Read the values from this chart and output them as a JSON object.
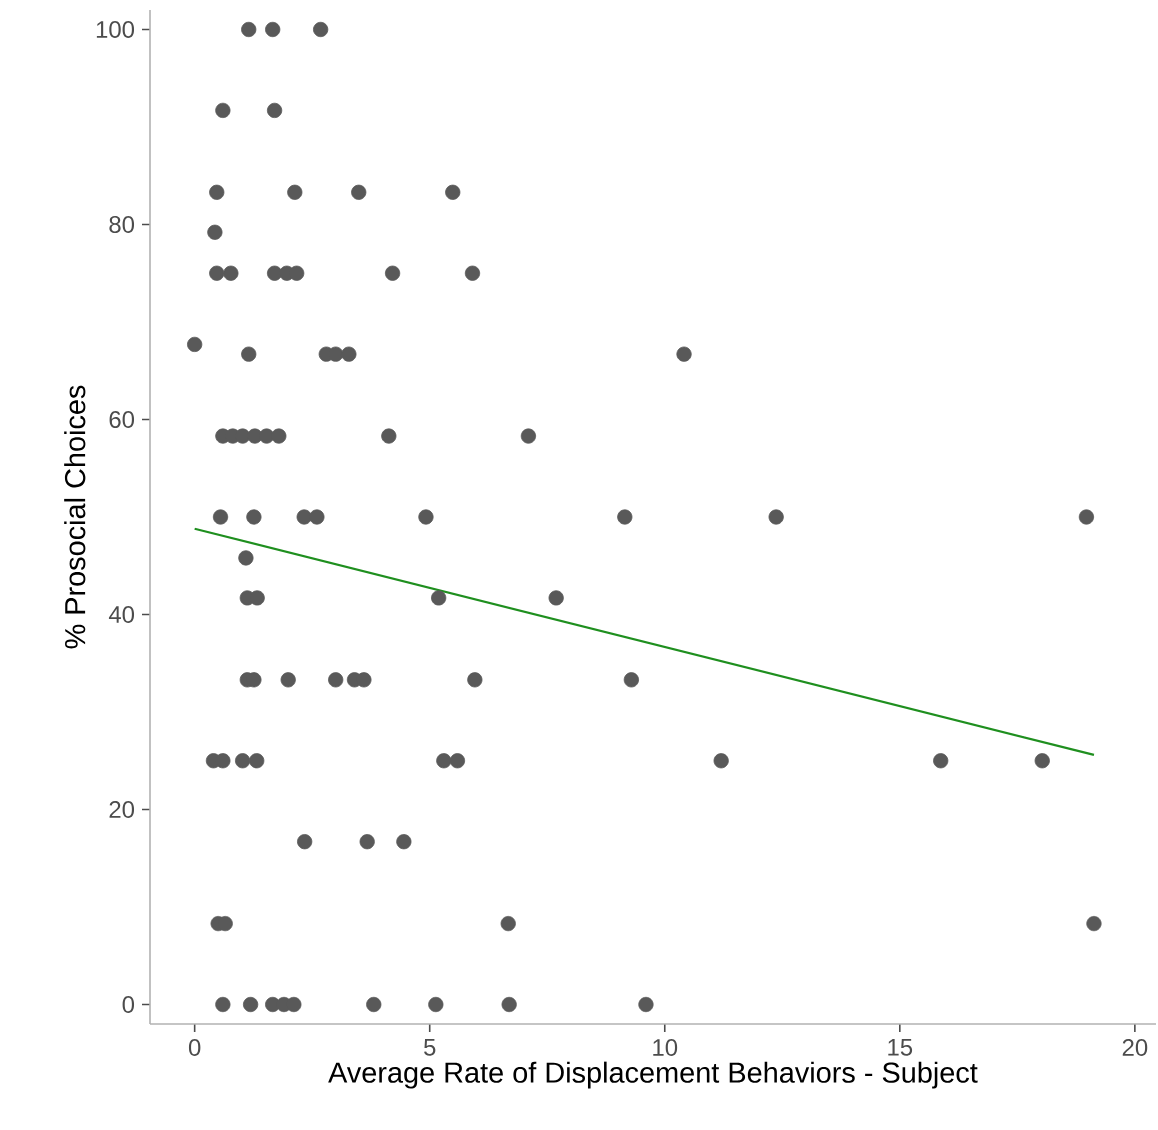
{
  "chart_data": {
    "type": "scatter",
    "xlabel": "Average Rate of Displacement Behaviors - Subject",
    "ylabel": "% Prosocial Choices",
    "xlim": [
      -0.95,
      20.45
    ],
    "ylim": [
      -2,
      102
    ],
    "xticks": [
      0,
      5,
      10,
      15,
      20
    ],
    "yticks": [
      0,
      20,
      40,
      60,
      80,
      100
    ],
    "grid": false,
    "series": [
      {
        "marker": "circle",
        "color": "#595959",
        "x": [
          1.15,
          1.66,
          2.68,
          0.6,
          1.7,
          0.47,
          2.13,
          3.49,
          5.49,
          0.43,
          0.47,
          0.77,
          1.7,
          1.96,
          2.17,
          4.21,
          5.91,
          0.0,
          1.15,
          2.8,
          3.0,
          3.28,
          10.41,
          0.6,
          0.81,
          1.02,
          1.28,
          1.53,
          1.79,
          4.13,
          7.1,
          0.55,
          1.26,
          2.33,
          2.6,
          4.92,
          9.15,
          12.37,
          18.97,
          1.09,
          1.12,
          1.33,
          5.19,
          7.69,
          1.12,
          1.26,
          1.99,
          3.0,
          3.4,
          3.6,
          5.96,
          9.29,
          0.4,
          0.6,
          1.02,
          1.32,
          5.3,
          5.59,
          11.2,
          15.87,
          18.03,
          2.34,
          3.67,
          4.45,
          0.5,
          0.65,
          6.67,
          19.13,
          0.6,
          1.19,
          1.66,
          1.9,
          2.11,
          3.81,
          5.13,
          6.69,
          9.6
        ],
        "values": [
          100,
          100,
          100,
          91.7,
          91.7,
          83.3,
          83.3,
          83.3,
          83.3,
          79.2,
          75,
          75,
          75,
          75,
          75,
          75,
          75,
          67.7,
          66.7,
          66.7,
          66.7,
          66.7,
          66.7,
          58.3,
          58.3,
          58.3,
          58.3,
          58.3,
          58.3,
          58.3,
          58.3,
          50,
          50,
          50,
          50,
          50,
          50,
          50,
          50,
          45.8,
          41.7,
          41.7,
          41.7,
          41.7,
          33.3,
          33.3,
          33.3,
          33.3,
          33.3,
          33.3,
          33.3,
          33.3,
          25,
          25,
          25,
          25,
          25,
          25,
          25,
          25,
          25,
          16.7,
          16.7,
          16.7,
          8.3,
          8.3,
          8.3,
          8.3,
          0,
          0,
          0,
          0,
          0,
          0,
          0,
          0,
          0
        ]
      },
      {
        "type": "line",
        "marker": "none",
        "color": "#1f8f1f",
        "x": [
          0,
          19.13
        ],
        "values": [
          48.8,
          25.6
        ]
      }
    ]
  }
}
